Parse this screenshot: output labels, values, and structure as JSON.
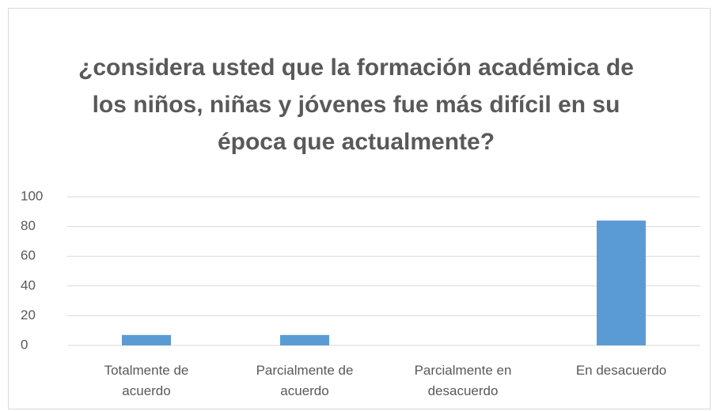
{
  "chart_data": {
    "type": "bar",
    "title": "¿considera usted que la formación académica de los niños, niñas y jóvenes fue más difícil en su época que actualmente?",
    "categories": [
      "Totalmente de acuerdo",
      "Parcialmente de acuerdo",
      "Parcialmente en desacuerdo",
      "En desacuerdo"
    ],
    "values": [
      7,
      7,
      0,
      84
    ],
    "color": "#5b9bd5",
    "ylim": [
      0,
      100
    ],
    "yticks": [
      0,
      20,
      40,
      60,
      80,
      100
    ],
    "grid": true
  }
}
